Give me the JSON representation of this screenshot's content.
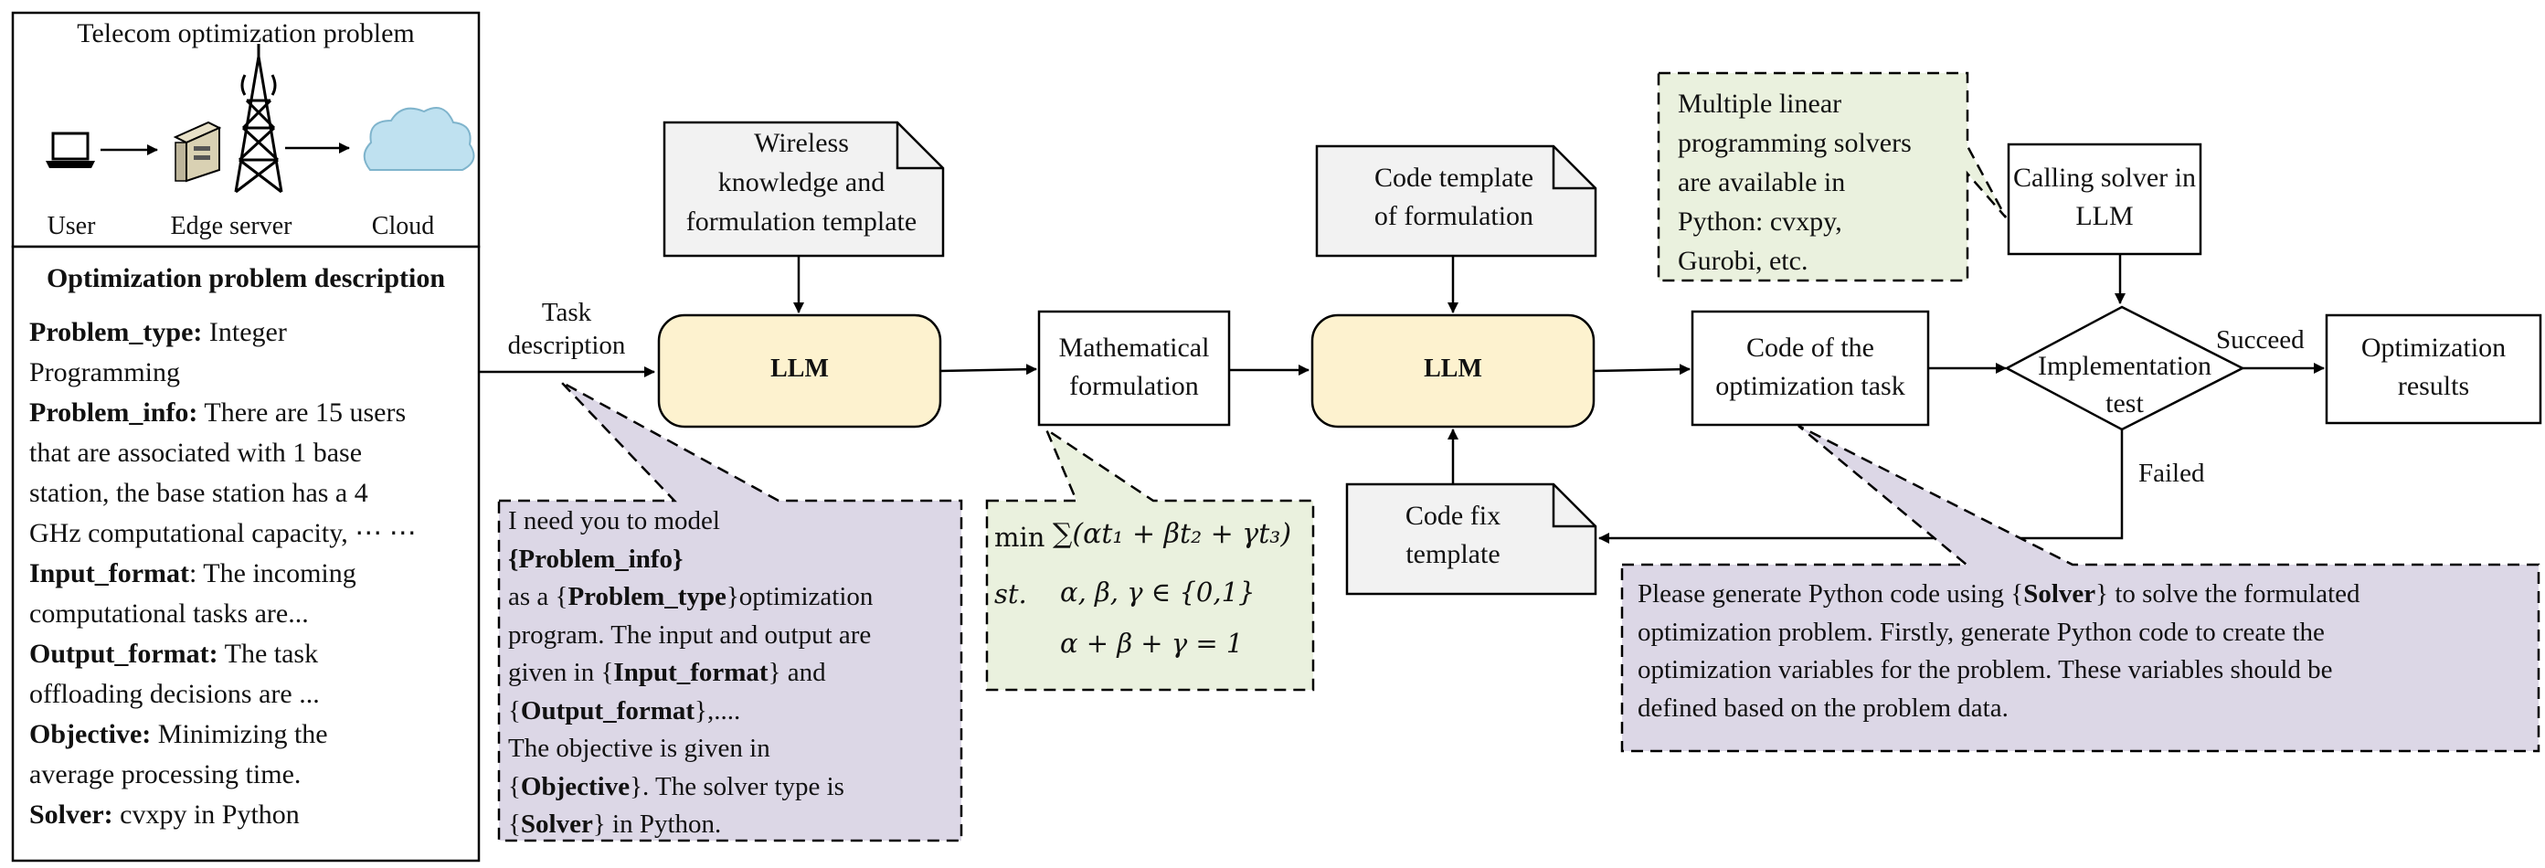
{
  "telecom_panel": {
    "title": "Telecom optimization problem",
    "labels": {
      "user": "User",
      "edge_server": "Edge server",
      "cloud": "Cloud"
    }
  },
  "description_panel": {
    "title": "Optimization problem description",
    "lines": [
      {
        "key": "Problem_type:",
        "value": " Integer"
      },
      {
        "key": "",
        "value": "Programming"
      },
      {
        "key": "Problem_info:",
        "value": " There are 15 users"
      },
      {
        "key": "",
        "value": "that are associated with 1 base"
      },
      {
        "key": "",
        "value": "station, the base station has a 4"
      },
      {
        "key": "",
        "value": "GHz computational capacity, ⋯ ⋯"
      },
      {
        "key": "Input_format",
        "value": ": The incoming"
      },
      {
        "key": "",
        "value": "computational tasks are..."
      },
      {
        "key": "Output_format:",
        "value": " The task"
      },
      {
        "key": "",
        "value": "offloading decisions are ..."
      },
      {
        "key": "Objective:",
        "value": " Minimizing the"
      },
      {
        "key": "",
        "value": "average processing time."
      },
      {
        "key": "Solver:",
        "value": " cvxpy in Python"
      }
    ]
  },
  "task_description_label": {
    "line1": "Task",
    "line2": "description"
  },
  "llm1": {
    "label": "LLM"
  },
  "llm2": {
    "label": "LLM"
  },
  "knowledge_doc": {
    "lines": [
      "Wireless",
      "knowledge and",
      "formulation template"
    ]
  },
  "math_formulation": {
    "lines": [
      "Mathematical",
      "formulation"
    ]
  },
  "code_template_doc": {
    "lines": [
      "Code template",
      "of formulation"
    ]
  },
  "code_fix_doc": {
    "lines": [
      "Code fix",
      "template"
    ]
  },
  "code_task": {
    "lines": [
      "Code of the",
      "optimization task"
    ]
  },
  "calling_solver": {
    "lines": [
      "Calling solver in",
      "LLM"
    ]
  },
  "implementation_test": {
    "lines": [
      "Implementation",
      "test"
    ]
  },
  "optimization_results": {
    "lines": [
      "Optimization",
      "results"
    ]
  },
  "edge_labels": {
    "succeed": "Succeed",
    "failed": "Failed"
  },
  "solvers_note": {
    "lines": [
      "Multiple linear",
      "programming solvers",
      "are available in",
      "Python: cvxpy,",
      "Gurobi, etc."
    ]
  },
  "prompt_note": {
    "lines": [
      [
        {
          "b": false,
          "t": "I need you to model"
        }
      ],
      [
        {
          "b": true,
          "t": "{Problem_info}"
        }
      ],
      [
        {
          "b": false,
          "t": "as a {"
        },
        {
          "b": true,
          "t": "Problem_type"
        },
        {
          "b": false,
          "t": "}optimization"
        }
      ],
      [
        {
          "b": false,
          "t": "program. The input and output are"
        }
      ],
      [
        {
          "b": false,
          "t": "given in {"
        },
        {
          "b": true,
          "t": "Input_format"
        },
        {
          "b": false,
          "t": "} and"
        }
      ],
      [
        {
          "b": false,
          "t": "{"
        },
        {
          "b": true,
          "t": "Output_format"
        },
        {
          "b": false,
          "t": "},...."
        }
      ],
      [
        {
          "b": false,
          "t": "The objective is given in"
        }
      ],
      [
        {
          "b": false,
          "t": "{"
        },
        {
          "b": true,
          "t": "Objective"
        },
        {
          "b": false,
          "t": "}. The solver type is"
        }
      ],
      [
        {
          "b": false,
          "t": "{"
        },
        {
          "b": true,
          "t": "Solver"
        },
        {
          "b": false,
          "t": "} in Python."
        }
      ]
    ]
  },
  "formula_note": {
    "min_label": "min",
    "objective": "∑(αt₁ + βt₂ + γt₃)",
    "st_label": "st.",
    "constraint1": "α, β, γ ∈ {0,1}",
    "constraint2": "α + β + γ = 1"
  },
  "code_prompt_note": {
    "lines": [
      [
        {
          "b": false,
          "t": "Please generate Python code using {"
        },
        {
          "b": true,
          "t": "Solver"
        },
        {
          "b": false,
          "t": "} to solve the formulated"
        }
      ],
      [
        {
          "b": false,
          "t": "optimization problem. Firstly, generate Python code to create the"
        }
      ],
      [
        {
          "b": false,
          "t": "optimization variables for the problem. These variables should be"
        }
      ],
      [
        {
          "b": false,
          "t": "defined based on the problem data."
        }
      ]
    ]
  },
  "colors": {
    "llm_fill": "#fdf2cf",
    "doc_fill": "#f2f2f2",
    "note_green": "#eaf1de",
    "note_purple": "#dcd7e6",
    "cloud_fill": "#bfe1f0"
  }
}
